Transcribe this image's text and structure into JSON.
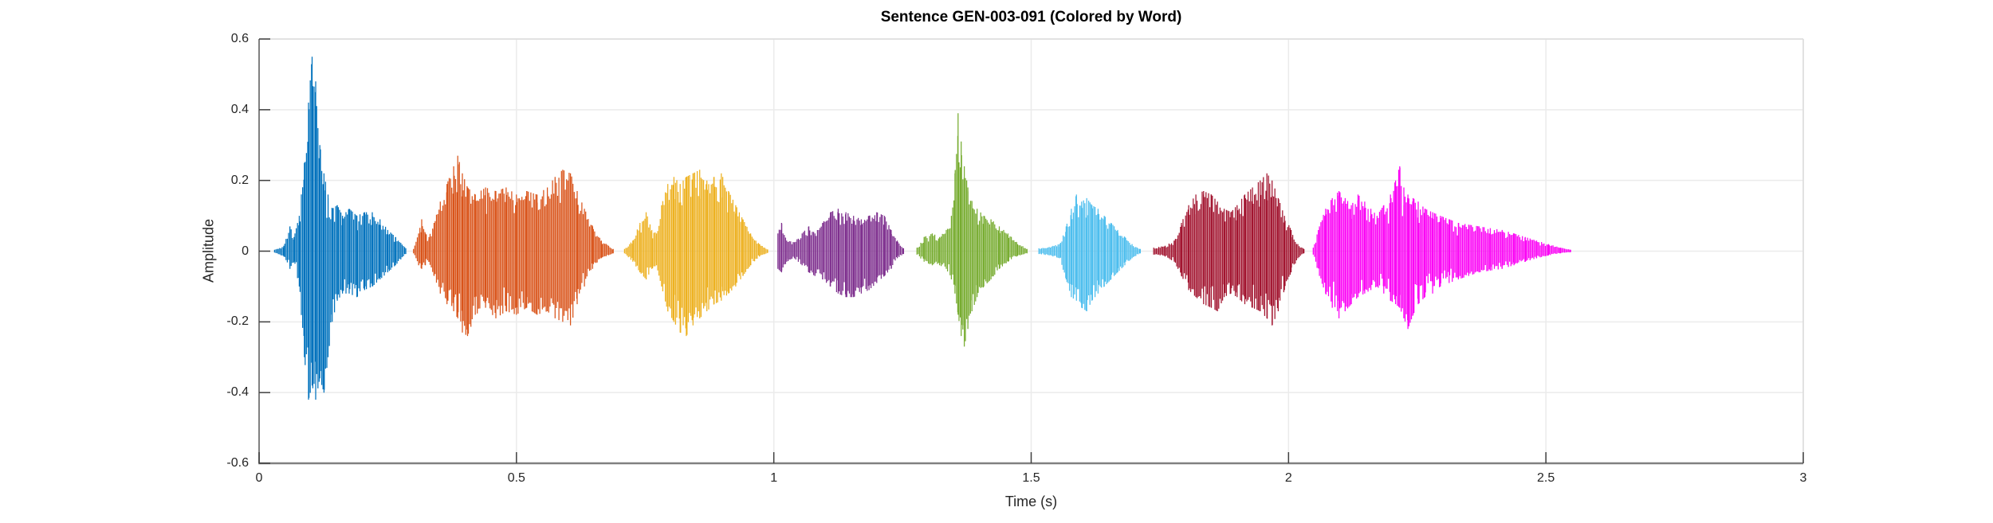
{
  "chart_data": {
    "type": "line",
    "subtype": "audio-waveform-by-word",
    "title": "Sentence GEN-003-091 (Colored by Word)",
    "xlabel": "Time (s)",
    "ylabel": "Amplitude",
    "xlim": [
      0,
      3
    ],
    "ylim": [
      -0.6,
      0.6
    ],
    "grid": true,
    "xticks": {
      "values": [
        0,
        0.5,
        1,
        1.5,
        2,
        2.5,
        3
      ],
      "labels": [
        "0",
        "0.5",
        "1",
        "1.5",
        "2",
        "2.5",
        "3"
      ]
    },
    "yticks": {
      "values": [
        -0.6,
        -0.4,
        -0.2,
        0,
        0.2,
        0.4,
        0.6
      ],
      "labels": [
        "-0.6",
        "-0.4",
        "-0.2",
        "0",
        "0.2",
        "0.4",
        "0.6"
      ]
    },
    "style": {
      "grid_color": "#ebebeb",
      "axis_color": "#808080",
      "box_color": "#dcdcdc",
      "tick_color": "#404040",
      "text_color": "#262626",
      "background": "#ffffff"
    },
    "segments": [
      {
        "id": "word-1",
        "color": "#0072BD",
        "t_start": 0.03,
        "t_end": 0.285,
        "envelope": [
          [
            0.03,
            0.004,
            -0.004
          ],
          [
            0.048,
            0.015,
            -0.015
          ],
          [
            0.06,
            0.07,
            -0.05
          ],
          [
            0.068,
            0.04,
            -0.03
          ],
          [
            0.078,
            0.1,
            -0.1
          ],
          [
            0.088,
            0.25,
            -0.3
          ],
          [
            0.096,
            0.42,
            -0.42
          ],
          [
            0.103,
            0.55,
            -0.38
          ],
          [
            0.11,
            0.48,
            -0.42
          ],
          [
            0.118,
            0.3,
            -0.36
          ],
          [
            0.126,
            0.22,
            -0.4
          ],
          [
            0.134,
            0.16,
            -0.3
          ],
          [
            0.142,
            0.12,
            -0.2
          ],
          [
            0.152,
            0.13,
            -0.14
          ],
          [
            0.162,
            0.1,
            -0.12
          ],
          [
            0.175,
            0.12,
            -0.12
          ],
          [
            0.19,
            0.1,
            -0.13
          ],
          [
            0.205,
            0.11,
            -0.11
          ],
          [
            0.22,
            0.11,
            -0.1
          ],
          [
            0.235,
            0.09,
            -0.08
          ],
          [
            0.25,
            0.06,
            -0.06
          ],
          [
            0.265,
            0.04,
            -0.04
          ],
          [
            0.285,
            0.008,
            -0.008
          ]
        ]
      },
      {
        "id": "word-2",
        "color": "#D95319",
        "t_start": 0.3,
        "t_end": 0.688,
        "envelope": [
          [
            0.3,
            0.006,
            -0.006
          ],
          [
            0.31,
            0.05,
            -0.04
          ],
          [
            0.316,
            0.09,
            -0.05
          ],
          [
            0.323,
            0.05,
            -0.04
          ],
          [
            0.33,
            0.04,
            -0.03
          ],
          [
            0.34,
            0.08,
            -0.07
          ],
          [
            0.352,
            0.14,
            -0.12
          ],
          [
            0.365,
            0.19,
            -0.15
          ],
          [
            0.378,
            0.24,
            -0.17
          ],
          [
            0.386,
            0.27,
            -0.19
          ],
          [
            0.395,
            0.22,
            -0.23
          ],
          [
            0.405,
            0.18,
            -0.24
          ],
          [
            0.42,
            0.16,
            -0.18
          ],
          [
            0.44,
            0.18,
            -0.16
          ],
          [
            0.46,
            0.17,
            -0.19
          ],
          [
            0.48,
            0.18,
            -0.17
          ],
          [
            0.5,
            0.16,
            -0.18
          ],
          [
            0.52,
            0.17,
            -0.16
          ],
          [
            0.54,
            0.16,
            -0.18
          ],
          [
            0.56,
            0.18,
            -0.17
          ],
          [
            0.575,
            0.21,
            -0.19
          ],
          [
            0.59,
            0.23,
            -0.2
          ],
          [
            0.605,
            0.22,
            -0.21
          ],
          [
            0.618,
            0.17,
            -0.15
          ],
          [
            0.632,
            0.12,
            -0.1
          ],
          [
            0.648,
            0.07,
            -0.05
          ],
          [
            0.665,
            0.03,
            -0.02
          ],
          [
            0.688,
            0.006,
            -0.006
          ]
        ]
      },
      {
        "id": "word-3",
        "color": "#EDB120",
        "t_start": 0.71,
        "t_end": 0.988,
        "envelope": [
          [
            0.71,
            0.006,
            -0.006
          ],
          [
            0.726,
            0.03,
            -0.03
          ],
          [
            0.74,
            0.08,
            -0.06
          ],
          [
            0.752,
            0.11,
            -0.08
          ],
          [
            0.763,
            0.06,
            -0.05
          ],
          [
            0.772,
            0.05,
            -0.04
          ],
          [
            0.782,
            0.13,
            -0.1
          ],
          [
            0.794,
            0.19,
            -0.17
          ],
          [
            0.806,
            0.21,
            -0.2
          ],
          [
            0.818,
            0.19,
            -0.23
          ],
          [
            0.83,
            0.21,
            -0.24
          ],
          [
            0.843,
            0.22,
            -0.21
          ],
          [
            0.856,
            0.23,
            -0.19
          ],
          [
            0.87,
            0.2,
            -0.17
          ],
          [
            0.884,
            0.21,
            -0.15
          ],
          [
            0.898,
            0.22,
            -0.14
          ],
          [
            0.912,
            0.17,
            -0.12
          ],
          [
            0.926,
            0.13,
            -0.1
          ],
          [
            0.94,
            0.09,
            -0.07
          ],
          [
            0.955,
            0.05,
            -0.04
          ],
          [
            0.972,
            0.02,
            -0.015
          ],
          [
            0.988,
            0.005,
            -0.005
          ]
        ]
      },
      {
        "id": "word-4",
        "color": "#7E2F8E",
        "t_start": 1.008,
        "t_end": 1.252,
        "envelope": [
          [
            1.008,
            0.05,
            -0.05
          ],
          [
            1.015,
            0.08,
            -0.06
          ],
          [
            1.025,
            0.03,
            -0.03
          ],
          [
            1.04,
            0.025,
            -0.02
          ],
          [
            1.055,
            0.05,
            -0.04
          ],
          [
            1.068,
            0.07,
            -0.06
          ],
          [
            1.08,
            0.05,
            -0.07
          ],
          [
            1.095,
            0.08,
            -0.08
          ],
          [
            1.11,
            0.11,
            -0.1
          ],
          [
            1.125,
            0.12,
            -0.12
          ],
          [
            1.14,
            0.11,
            -0.13
          ],
          [
            1.155,
            0.1,
            -0.13
          ],
          [
            1.17,
            0.09,
            -0.12
          ],
          [
            1.185,
            0.1,
            -0.11
          ],
          [
            1.2,
            0.11,
            -0.09
          ],
          [
            1.215,
            0.1,
            -0.07
          ],
          [
            1.228,
            0.06,
            -0.05
          ],
          [
            1.24,
            0.03,
            -0.02
          ],
          [
            1.252,
            0.008,
            -0.008
          ]
        ]
      },
      {
        "id": "word-5",
        "color": "#77AC30",
        "t_start": 1.278,
        "t_end": 1.492,
        "envelope": [
          [
            1.278,
            0.01,
            -0.01
          ],
          [
            1.292,
            0.04,
            -0.03
          ],
          [
            1.308,
            0.05,
            -0.04
          ],
          [
            1.322,
            0.04,
            -0.04
          ],
          [
            1.335,
            0.06,
            -0.05
          ],
          [
            1.345,
            0.1,
            -0.08
          ],
          [
            1.352,
            0.22,
            -0.12
          ],
          [
            1.358,
            0.39,
            -0.18
          ],
          [
            1.364,
            0.31,
            -0.24
          ],
          [
            1.37,
            0.24,
            -0.27
          ],
          [
            1.377,
            0.18,
            -0.22
          ],
          [
            1.385,
            0.14,
            -0.17
          ],
          [
            1.395,
            0.12,
            -0.13
          ],
          [
            1.408,
            0.1,
            -0.1
          ],
          [
            1.422,
            0.09,
            -0.08
          ],
          [
            1.438,
            0.07,
            -0.05
          ],
          [
            1.455,
            0.05,
            -0.03
          ],
          [
            1.472,
            0.025,
            -0.015
          ],
          [
            1.492,
            0.006,
            -0.006
          ]
        ]
      },
      {
        "id": "word-6",
        "color": "#4DBEEE",
        "t_start": 1.515,
        "t_end": 1.712,
        "envelope": [
          [
            1.515,
            0.008,
            -0.008
          ],
          [
            1.535,
            0.012,
            -0.012
          ],
          [
            1.555,
            0.02,
            -0.02
          ],
          [
            1.568,
            0.07,
            -0.08
          ],
          [
            1.578,
            0.12,
            -0.13
          ],
          [
            1.588,
            0.16,
            -0.14
          ],
          [
            1.598,
            0.14,
            -0.16
          ],
          [
            1.608,
            0.15,
            -0.17
          ],
          [
            1.618,
            0.13,
            -0.14
          ],
          [
            1.63,
            0.12,
            -0.12
          ],
          [
            1.642,
            0.1,
            -0.1
          ],
          [
            1.655,
            0.08,
            -0.08
          ],
          [
            1.668,
            0.06,
            -0.06
          ],
          [
            1.682,
            0.04,
            -0.04
          ],
          [
            1.696,
            0.02,
            -0.02
          ],
          [
            1.712,
            0.006,
            -0.006
          ]
        ]
      },
      {
        "id": "word-7",
        "color": "#A2142F",
        "t_start": 1.738,
        "t_end": 2.03,
        "envelope": [
          [
            1.738,
            0.01,
            -0.01
          ],
          [
            1.76,
            0.015,
            -0.015
          ],
          [
            1.778,
            0.03,
            -0.03
          ],
          [
            1.792,
            0.08,
            -0.07
          ],
          [
            1.806,
            0.13,
            -0.11
          ],
          [
            1.82,
            0.16,
            -0.13
          ],
          [
            1.835,
            0.17,
            -0.15
          ],
          [
            1.85,
            0.16,
            -0.16
          ],
          [
            1.862,
            0.14,
            -0.17
          ],
          [
            1.875,
            0.12,
            -0.13
          ],
          [
            1.888,
            0.11,
            -0.12
          ],
          [
            1.9,
            0.13,
            -0.13
          ],
          [
            1.915,
            0.16,
            -0.15
          ],
          [
            1.93,
            0.18,
            -0.16
          ],
          [
            1.945,
            0.2,
            -0.17
          ],
          [
            1.958,
            0.22,
            -0.19
          ],
          [
            1.968,
            0.2,
            -0.21
          ],
          [
            1.98,
            0.15,
            -0.17
          ],
          [
            1.992,
            0.1,
            -0.11
          ],
          [
            2.005,
            0.06,
            -0.06
          ],
          [
            2.018,
            0.02,
            -0.02
          ],
          [
            2.03,
            0.006,
            -0.006
          ]
        ]
      },
      {
        "id": "word-8",
        "color": "#FB02F5",
        "t_start": 2.048,
        "t_end": 2.548,
        "envelope": [
          [
            2.048,
            0.01,
            -0.01
          ],
          [
            2.06,
            0.07,
            -0.07
          ],
          [
            2.072,
            0.12,
            -0.12
          ],
          [
            2.085,
            0.15,
            -0.16
          ],
          [
            2.098,
            0.17,
            -0.19
          ],
          [
            2.11,
            0.15,
            -0.17
          ],
          [
            2.122,
            0.13,
            -0.15
          ],
          [
            2.135,
            0.16,
            -0.13
          ],
          [
            2.148,
            0.14,
            -0.12
          ],
          [
            2.16,
            0.12,
            -0.11
          ],
          [
            2.172,
            0.1,
            -0.1
          ],
          [
            2.185,
            0.13,
            -0.12
          ],
          [
            2.198,
            0.16,
            -0.14
          ],
          [
            2.208,
            0.2,
            -0.15
          ],
          [
            2.216,
            0.24,
            -0.16
          ],
          [
            2.224,
            0.18,
            -0.19
          ],
          [
            2.232,
            0.16,
            -0.22
          ],
          [
            2.242,
            0.15,
            -0.18
          ],
          [
            2.252,
            0.14,
            -0.15
          ],
          [
            2.265,
            0.12,
            -0.13
          ],
          [
            2.28,
            0.11,
            -0.12
          ],
          [
            2.295,
            0.1,
            -0.1
          ],
          [
            2.312,
            0.09,
            -0.09
          ],
          [
            2.33,
            0.08,
            -0.08
          ],
          [
            2.35,
            0.075,
            -0.07
          ],
          [
            2.37,
            0.07,
            -0.06
          ],
          [
            2.392,
            0.065,
            -0.055
          ],
          [
            2.415,
            0.06,
            -0.05
          ],
          [
            2.438,
            0.05,
            -0.04
          ],
          [
            2.46,
            0.04,
            -0.03
          ],
          [
            2.482,
            0.03,
            -0.02
          ],
          [
            2.505,
            0.02,
            -0.012
          ],
          [
            2.528,
            0.01,
            -0.006
          ],
          [
            2.548,
            0.004,
            -0.003
          ]
        ]
      }
    ]
  }
}
